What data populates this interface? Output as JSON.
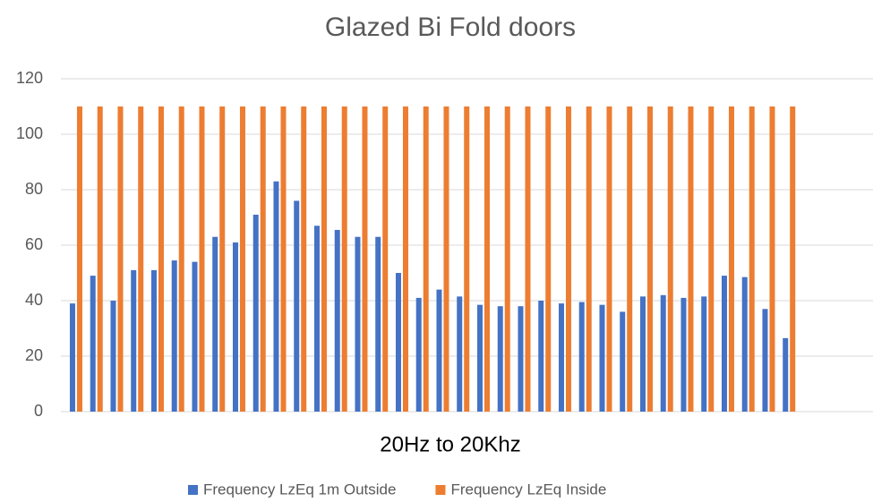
{
  "chart_data": {
    "type": "bar",
    "title": "Glazed Bi Fold doors",
    "x_label": "20Hz to 20Khz",
    "categories": [
      null,
      null,
      null,
      null,
      null,
      null,
      null,
      null,
      null,
      null,
      null,
      null,
      null,
      null,
      null,
      null,
      null,
      null,
      null,
      null,
      null,
      null,
      null,
      null,
      null,
      null,
      null,
      null,
      null,
      null,
      null,
      null,
      null,
      null,
      null,
      null
    ],
    "series": [
      {
        "name": "Frequency LzEq 1m Outside",
        "color": "#4472c4",
        "values": [
          39,
          49,
          40,
          51,
          51,
          54.5,
          54,
          63,
          61,
          71,
          83,
          76,
          67,
          65.5,
          63,
          63,
          50,
          41,
          44,
          41.5,
          38.5,
          38,
          38,
          40,
          39,
          39.5,
          38.5,
          36,
          41.5,
          42,
          41,
          41.5,
          49,
          48.5,
          37,
          26.5
        ]
      },
      {
        "name": "Frequency LzEq Inside",
        "color": "#ed7d31",
        "values": [
          110,
          110,
          110,
          110,
          110,
          110,
          110,
          110,
          110,
          110,
          110,
          110,
          110,
          110,
          110,
          110,
          110,
          110,
          110,
          110,
          110,
          110,
          110,
          110,
          110,
          110,
          110,
          110,
          110,
          110,
          110,
          110,
          110,
          110,
          110,
          110
        ]
      }
    ],
    "ylim": [
      0,
      120
    ],
    "yticks": [
      0,
      20,
      40,
      60,
      80,
      100,
      120
    ],
    "grid": true,
    "legend": "bottom"
  }
}
